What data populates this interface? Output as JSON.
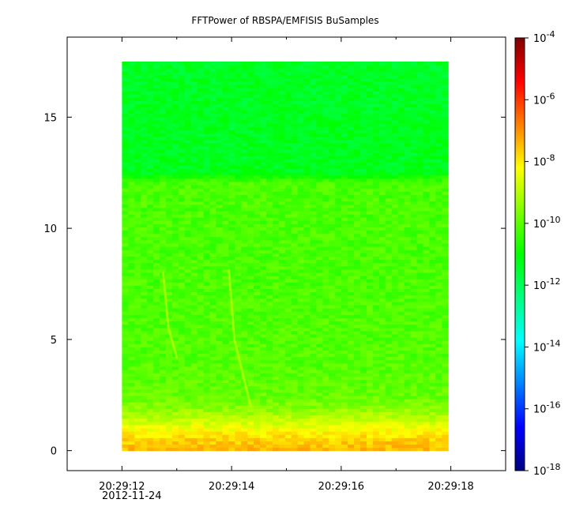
{
  "chart_data": {
    "type": "heatmap",
    "title": "FFTPower of RBSPA/EMFISIS  BuSamples",
    "xlabel": "",
    "ylabel": "",
    "x_ticks_major": [
      "20:29:12",
      "20:29:14",
      "20:29:16",
      "20:29:18"
    ],
    "x_tick_date": "2012-11-24",
    "x_range_seconds": [
      11.0,
      19.0
    ],
    "x_ticks_seconds": [
      12,
      14,
      16,
      18
    ],
    "x_minor_ticks_seconds": [
      11.0,
      13.0,
      15.0,
      17.0
    ],
    "data_x_range_seconds": [
      12.0,
      17.95
    ],
    "y_ticks": [
      "0",
      "5",
      "10",
      "15"
    ],
    "y_ticks_values": [
      0,
      5,
      10,
      15
    ],
    "ylim": [
      -0.9,
      18.6
    ],
    "data_y_range": [
      0.0,
      17.5
    ],
    "colorbar": {
      "scale": "log",
      "range": [
        1e-18,
        0.0001
      ],
      "ticks": [
        {
          "base": "10",
          "exp": "-4",
          "value": 0.0001
        },
        {
          "base": "10",
          "exp": "-6",
          "value": 1e-06
        },
        {
          "base": "10",
          "exp": "-8",
          "value": 1e-08
        },
        {
          "base": "10",
          "exp": "-10",
          "value": 1e-10
        },
        {
          "base": "10",
          "exp": "-12",
          "value": 1e-12
        },
        {
          "base": "10",
          "exp": "-14",
          "value": 1e-14
        },
        {
          "base": "10",
          "exp": "-16",
          "value": 1e-16
        },
        {
          "base": "10",
          "exp": "-18",
          "value": 1e-18
        }
      ],
      "colormap": [
        "#00007f",
        "#0000ff",
        "#007fff",
        "#00ffff",
        "#00ff7f",
        "#00ff00",
        "#7fff00",
        "#ffff00",
        "#ff7f00",
        "#ff0000",
        "#7f0000"
      ]
    },
    "power_profile_log10": [
      {
        "y": 0.0,
        "v": -7.4
      },
      {
        "y": 0.5,
        "v": -7.7
      },
      {
        "y": 1.0,
        "v": -8.3
      },
      {
        "y": 1.5,
        "v": -9.0
      },
      {
        "y": 2.0,
        "v": -9.6
      },
      {
        "y": 2.5,
        "v": -9.9
      },
      {
        "y": 4.0,
        "v": -10.1
      },
      {
        "y": 8.0,
        "v": -10.2
      },
      {
        "y": 12.1,
        "v": -10.2
      },
      {
        "y": 12.5,
        "v": -11.3
      },
      {
        "y": 17.5,
        "v": -11.4
      }
    ],
    "features": [
      {
        "name": "whistler",
        "points": [
          [
            12.75,
            8.0
          ],
          [
            12.85,
            5.5
          ],
          [
            13.0,
            4.2
          ]
        ],
        "v": -9.0
      },
      {
        "name": "whistler",
        "points": [
          [
            13.95,
            8.1
          ],
          [
            14.05,
            5.0
          ],
          [
            14.35,
            2.0
          ]
        ],
        "v": -9.0
      }
    ]
  }
}
